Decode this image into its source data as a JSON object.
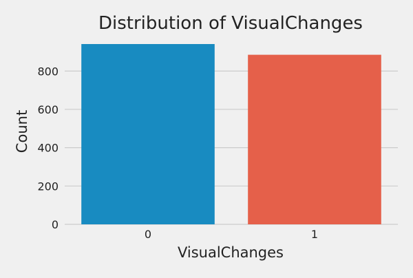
{
  "chart_data": {
    "type": "bar",
    "title": "Distribution of VisualChanges",
    "xlabel": "VisualChanges",
    "ylabel": "Count",
    "categories": [
      "0",
      "1"
    ],
    "values": [
      941,
      885
    ],
    "ylim": [
      0,
      941
    ],
    "yticks": [
      0,
      200,
      400,
      600,
      800
    ],
    "ytick_labels": [
      "0",
      "200",
      "400",
      "600",
      "800"
    ],
    "grid": "horizontal",
    "colors": [
      "#188bc1",
      "#e5604a"
    ]
  },
  "style": {
    "background": "#f0f0f0",
    "grid_color": "#cbcbcb"
  }
}
